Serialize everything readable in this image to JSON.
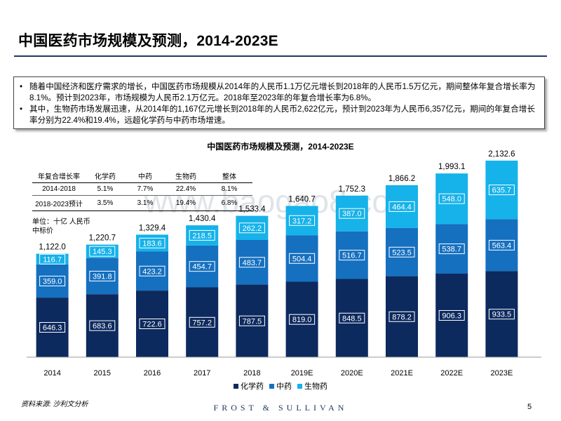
{
  "page": {
    "title": "中国医药市场规模及预测，2014-2023E",
    "bullets": [
      "随着中国经济和医疗需求的增长，中国医药市场规模从2014年的人民币1.1万亿元增长到2018年的人民币1.5万亿元，期间整体年复合增长率为8.1%。预计到2023年，市场规模为人民币2.1万亿元。2018年至2023年的年复合增长率为6.8%。",
      "其中，生物药市场发展迅速，从2014年的1,167亿元增长到2018年的人民币2,622亿元，预计到2023年为人民币6,357亿元，期间的年复合增长率分别为22.4%和19.4%，远超化学药与中药市场增速。"
    ],
    "bullet_symbol": "•",
    "source": "资料来源: 沙利文分析",
    "brand": "FROST & SULLIVAN",
    "page_number": "5"
  },
  "growth_table": {
    "headers": [
      "年复合增长率",
      "化学药",
      "中药",
      "生物药",
      "整体"
    ],
    "rows": [
      [
        "2014-2018",
        "5.1%",
        "7.7%",
        "22.4%",
        "8.1%"
      ],
      [
        "2018-2023预计",
        "3.5%",
        "3.1%",
        "19.4%",
        "6.8%"
      ]
    ]
  },
  "unit_label": "单位：十亿 人民币\n中标价",
  "watermark": "www.baogao8.com",
  "chart_data": {
    "type": "bar",
    "stacked": true,
    "title": "中国医药市场规模及预测，2014-2023E",
    "categories": [
      "2014",
      "2015",
      "2016",
      "2017",
      "2018",
      "2019E",
      "2020E",
      "2021E",
      "2022E",
      "2023E"
    ],
    "series": [
      {
        "name": "化学药",
        "color": "#0d2a5e",
        "values": [
          646.3,
          683.6,
          722.6,
          757.2,
          787.5,
          819.0,
          848.5,
          878.2,
          906.3,
          933.5
        ]
      },
      {
        "name": "中药",
        "color": "#1570c0",
        "values": [
          359.0,
          391.8,
          423.2,
          454.7,
          483.7,
          504.4,
          516.7,
          523.5,
          538.7,
          563.4
        ]
      },
      {
        "name": "生物药",
        "color": "#16b2ea",
        "values": [
          116.7,
          145.3,
          183.6,
          218.5,
          262.2,
          317.2,
          387.0,
          464.4,
          548.0,
          635.7
        ]
      }
    ],
    "series_labels": [
      [
        "646.3",
        "683.6",
        "722.6",
        "757.2",
        "787.5",
        "819.0",
        "848.5",
        "878.2",
        "906.3",
        "933.5"
      ],
      [
        "359.0",
        "391.8",
        "423.2",
        "454.7",
        "483.7",
        "504.4",
        "516.7",
        "523.5",
        "538.7",
        "563.4"
      ],
      [
        "116.7",
        "145.3",
        "183.6",
        "218.5",
        "262.2",
        "317.2",
        "387.0",
        "464.4",
        "548.0",
        "635.7"
      ]
    ],
    "totals": [
      1122.0,
      1220.7,
      1329.4,
      1430.4,
      1533.4,
      1640.7,
      1752.3,
      1866.2,
      1993.1,
      2132.6
    ],
    "total_labels": [
      "1,122.0",
      "1,220.7",
      "1,329.4",
      "1,430.4",
      "1,533.4",
      "1,640.7",
      "1,752.3",
      "1,866.2",
      "1,993.1",
      "2,132.6"
    ],
    "ylim": [
      0,
      2200
    ],
    "legend_position": "bottom"
  }
}
